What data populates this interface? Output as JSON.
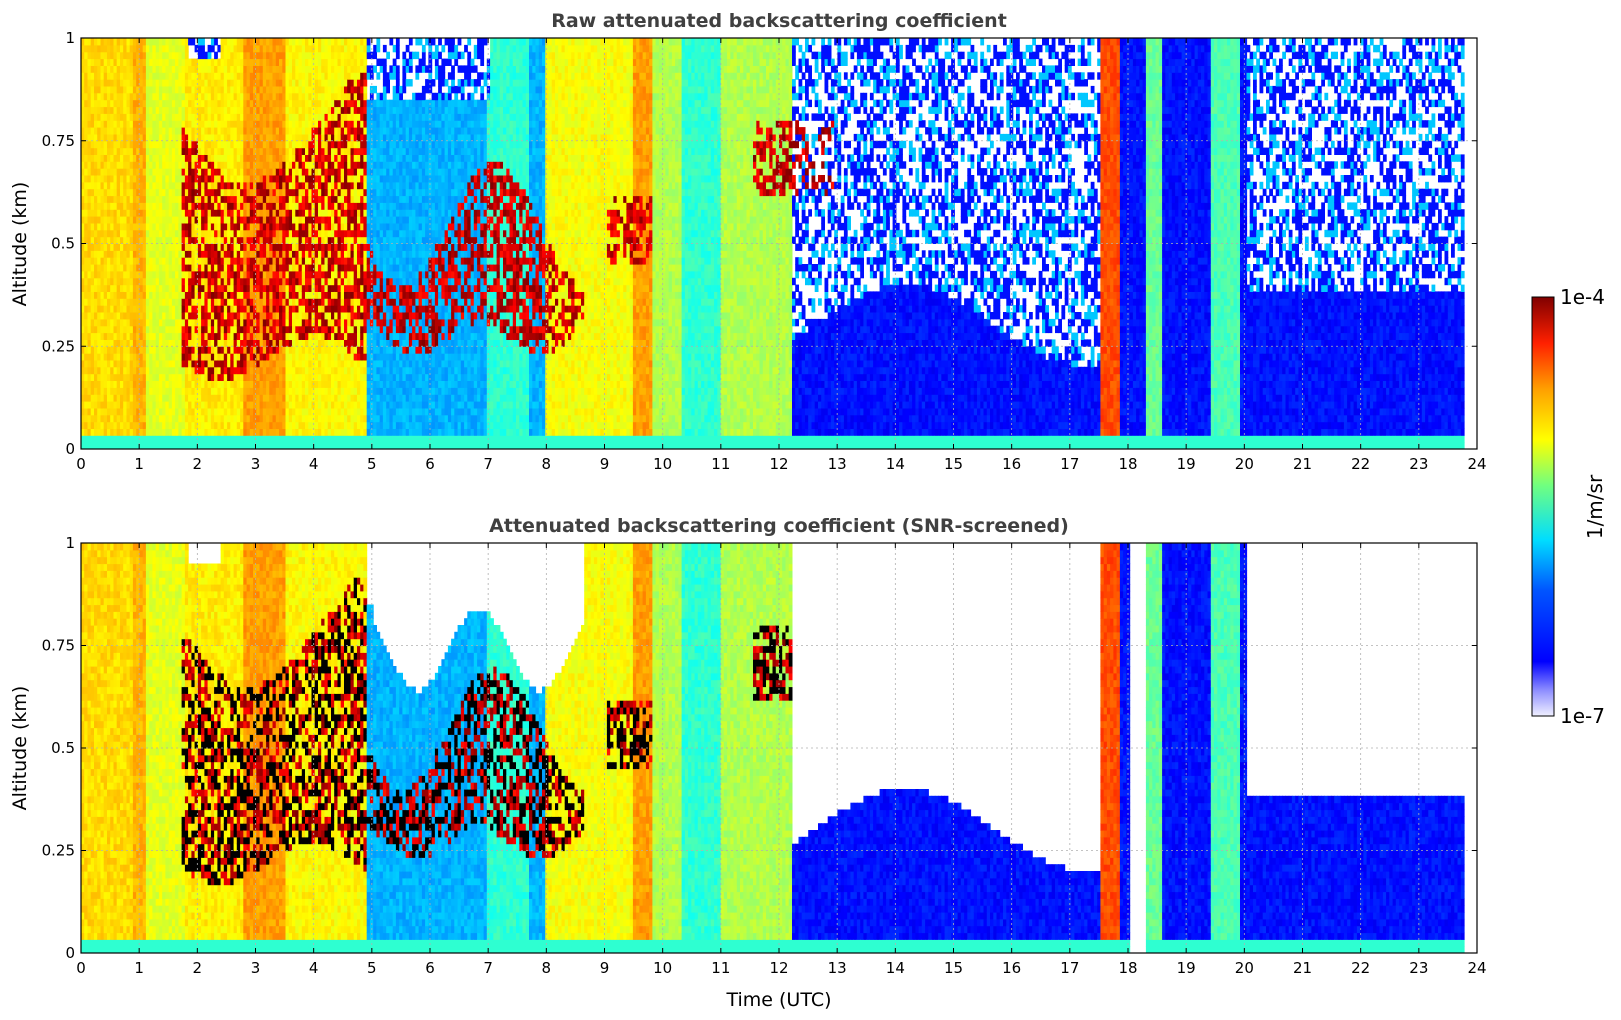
{
  "chart_data": [
    {
      "type": "heatmap",
      "title": "Raw attenuated backscattering coefficient",
      "xlabel": "",
      "ylabel": "Altitude (km)",
      "xlim": [
        0,
        24
      ],
      "ylim": [
        0,
        1
      ],
      "x_ticks": [
        "0",
        "1",
        "2",
        "3",
        "4",
        "5",
        "6",
        "7",
        "8",
        "9",
        "10",
        "11",
        "12",
        "13",
        "14",
        "15",
        "16",
        "17",
        "18",
        "19",
        "20",
        "21",
        "22",
        "23",
        "24"
      ],
      "y_ticks": [
        "0",
        "0.25",
        "0.5",
        "0.75",
        "1"
      ],
      "grid": true,
      "screened": false,
      "regions": [
        {
          "t": [
            0,
            1.8
          ],
          "desc": "yellow-green column, full altitude"
        },
        {
          "t": [
            1.8,
            5.0
          ],
          "desc": "dense aerosol layer 0.25-0.9 km, peak near 3 UTC"
        },
        {
          "t": [
            5.0,
            8.0
          ],
          "desc": "aerosol layer 0.3-0.7 km above blue boundary layer"
        },
        {
          "t": [
            8.0,
            10.0
          ],
          "desc": "yellow column, layer near 0.5 km"
        },
        {
          "t": [
            10.0,
            12.2
          ],
          "desc": "green-cyan column"
        },
        {
          "t": [
            12.2,
            17.5
          ],
          "desc": "low backscatter, noise above 0.3 km"
        },
        {
          "t": [
            17.5,
            17.8
          ],
          "desc": "orange-red column"
        },
        {
          "t": [
            18.3,
            20.0
          ],
          "desc": "narrow green-cyan bands"
        },
        {
          "t": [
            20.0,
            23.8
          ],
          "desc": "low backscatter, noise above 0.4 km"
        }
      ]
    },
    {
      "type": "heatmap",
      "title": "Attenuated backscattering coefficient (SNR-screened)",
      "xlabel": "Time (UTC)",
      "ylabel": "Altitude (km)",
      "xlim": [
        0,
        24
      ],
      "ylim": [
        0,
        1
      ],
      "x_ticks": [
        "0",
        "1",
        "2",
        "3",
        "4",
        "5",
        "6",
        "7",
        "8",
        "9",
        "10",
        "11",
        "12",
        "13",
        "14",
        "15",
        "16",
        "17",
        "18",
        "19",
        "20",
        "21",
        "22",
        "23",
        "24"
      ],
      "y_ticks": [
        "0",
        "0.25",
        "0.5",
        "0.75",
        "1"
      ],
      "grid": true,
      "screened": true
    }
  ],
  "colorbar": {
    "label": "1/m/sr",
    "max_label": "1e-4",
    "min_label": "1e-7",
    "colormap": "jet"
  },
  "colors": {
    "title": "#404040",
    "grid": "#b0b0b0"
  }
}
